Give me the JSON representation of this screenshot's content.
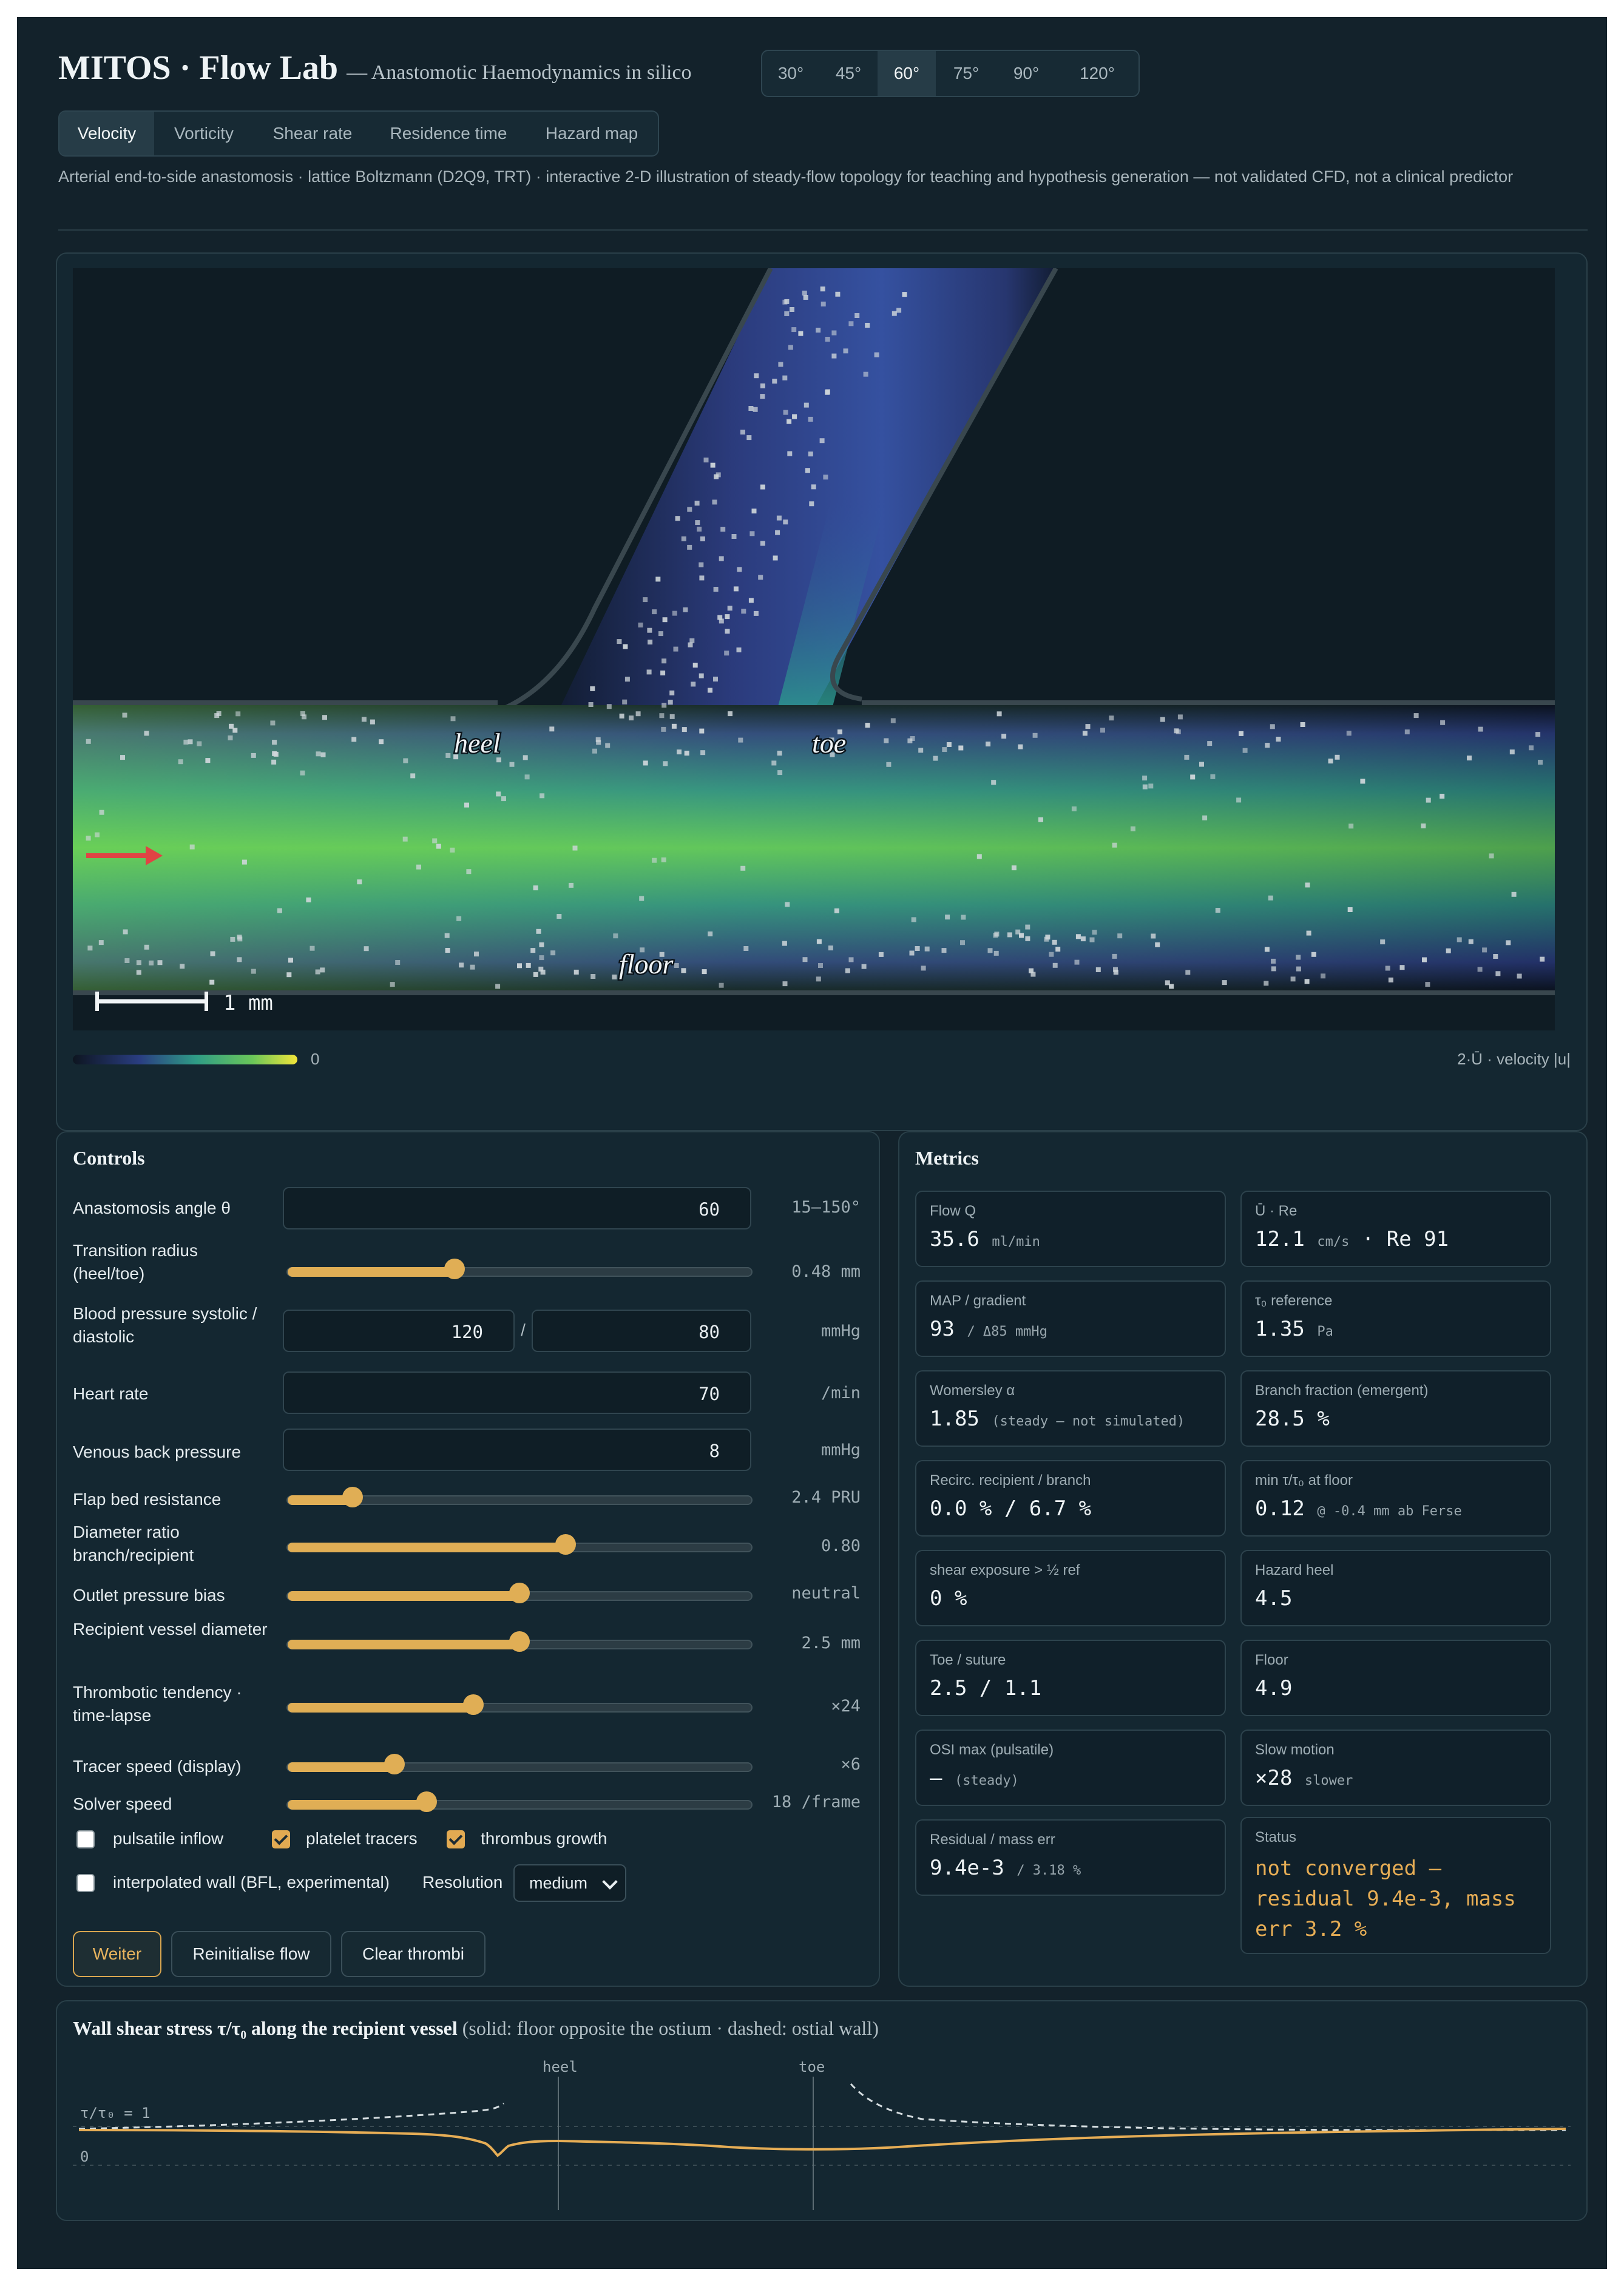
{
  "header": {
    "title": "MITOS · Flow Lab",
    "subtitle": "— Anastomotic Haemodynamics in silico",
    "angles": [
      "30°",
      "45°",
      "60°",
      "75°",
      "90°",
      "120°"
    ],
    "active_angle": "60°",
    "tabs": [
      "Velocity",
      "Vorticity",
      "Shear rate",
      "Residence time",
      "Hazard map"
    ],
    "active_tab": "Velocity",
    "description": "Arterial end-to-side anastomosis · lattice Boltzmann (D2Q9, TRT) · interactive 2-D illustration of steady-flow topology for teaching and hypothesis generation — not validated CFD, not a clinical predictor"
  },
  "viewer": {
    "labels": {
      "heel": "heel",
      "toe": "toe",
      "floor": "floor"
    },
    "scale_bar": "1 mm",
    "colorbar_min": "0",
    "colorbar_caption": "2·Ū · velocity |u|"
  },
  "controls": {
    "title": "Controls",
    "angle": {
      "label": "Anastomosis angle θ",
      "value": "60",
      "range": "15–150°"
    },
    "transition_radius": {
      "label": "Transition radius (heel/toe)",
      "value": "0.48 mm",
      "level": 0.36
    },
    "blood_pressure": {
      "label": "Blood pressure systolic / diastolic",
      "systolic": "120",
      "diastolic": "80",
      "sep": "/",
      "unit": "mmHg"
    },
    "heart_rate": {
      "label": "Heart rate",
      "value": "70",
      "unit": "/min"
    },
    "venous": {
      "label": "Venous back pressure",
      "value": "8",
      "unit": "mmHg"
    },
    "flap": {
      "label": "Flap bed resistance",
      "value": "2.4 PRU",
      "level": 0.14
    },
    "diameter_ratio": {
      "label": "Diameter ratio branch/recipient",
      "value": "0.80",
      "level": 0.6
    },
    "outlet_bias": {
      "label": "Outlet pressure bias",
      "value": "neutral",
      "level": 0.5
    },
    "recipient_diameter": {
      "label": "Recipient vessel diameter",
      "value": "2.5 mm",
      "level": 0.5
    },
    "thrombotic": {
      "label": "Thrombotic tendency · time-lapse",
      "value": "×24",
      "level": 0.4
    },
    "tracer_speed": {
      "label": "Tracer speed (display)",
      "value": "×6",
      "level": 0.23
    },
    "solver_speed": {
      "label": "Solver speed",
      "value": "18 /frame",
      "level": 0.3
    },
    "checks": {
      "pulsatile": {
        "label": "pulsatile inflow",
        "checked": false
      },
      "platelet": {
        "label": "platelet tracers",
        "checked": true
      },
      "thrombus": {
        "label": "thrombus growth",
        "checked": true
      },
      "bfl": {
        "label": "interpolated wall (BFL, experimental)",
        "checked": false
      }
    },
    "resolution": {
      "label": "Resolution",
      "value": "medium"
    },
    "buttons": {
      "continue": "Weiter",
      "reinit": "Reinitialise flow",
      "clear": "Clear thrombi"
    }
  },
  "metrics": {
    "title": "Metrics",
    "cards": [
      {
        "label": "Flow Q",
        "value": "35.6",
        "unit": "ml/min"
      },
      {
        "label": "Ū · Re",
        "value": "12.1",
        "unit": "cm/s",
        "extra": " · Re 91"
      },
      {
        "label": "MAP / gradient",
        "value": "93",
        "unit": "/ Δ85 mmHg"
      },
      {
        "label": "τ₀ reference",
        "value": "1.35",
        "unit": "Pa"
      },
      {
        "label": "Womersley α",
        "value": "1.85",
        "unit": "(steady — not simulated)"
      },
      {
        "label": "Branch fraction (emergent)",
        "value": "28.5 %",
        "unit": ""
      },
      {
        "label": "Recirc. recipient / branch",
        "value": "0.0 % / 6.7 %",
        "unit": ""
      },
      {
        "label": "min τ/τ₀ at floor",
        "value": "0.12",
        "unit": "@ -0.4 mm ab Ferse"
      },
      {
        "label": "shear exposure > ½ ref",
        "value": "0 %",
        "unit": ""
      },
      {
        "label": "Hazard heel",
        "value": "4.5",
        "unit": ""
      },
      {
        "label": "Toe / suture",
        "value": "2.5 / 1.1",
        "unit": ""
      },
      {
        "label": "Floor",
        "value": "4.9",
        "unit": ""
      },
      {
        "label": "OSI max (pulsatile)",
        "value": "–",
        "unit": "(steady)"
      },
      {
        "label": "Slow motion",
        "value": "×28",
        "unit": "slower"
      },
      {
        "label": "Residual / mass err",
        "value": "9.4e-3",
        "unit": "/ 3.18 %"
      }
    ],
    "status": {
      "label": "Status",
      "value": "not converged — residual 9.4e-3, mass err 3.2 %",
      "color": "#e6ad55"
    }
  },
  "wss": {
    "title": "Wall shear stress τ/τ₀ along the recipient vessel",
    "subtitle": "(solid: floor opposite the ostium · dashed: ostial wall)",
    "heel": "heel",
    "toe": "toe",
    "ref_label": "τ/τ₀ = 1",
    "zero_label": "0"
  }
}
